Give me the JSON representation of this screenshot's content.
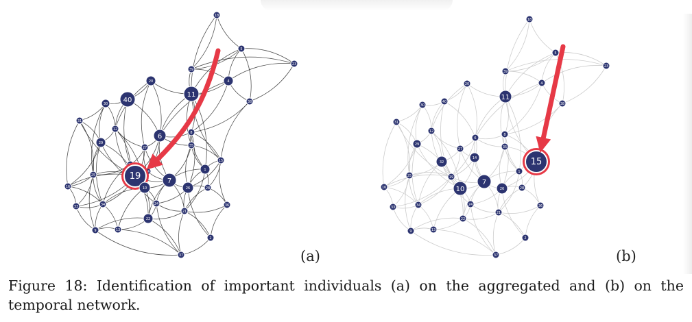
{
  "figure": {
    "panel_a": {
      "label": "(a)",
      "highlighted_node": "19",
      "nodes": [
        "18",
        "5",
        "23",
        "39",
        "4",
        "11",
        "20",
        "40",
        "30",
        "38",
        "31",
        "12",
        "6",
        "8",
        "29",
        "27",
        "35",
        "32",
        "14",
        "15",
        "1",
        "19",
        "7",
        "26",
        "28",
        "25",
        "16",
        "10",
        "34",
        "24",
        "21",
        "33",
        "22",
        "36",
        "9",
        "13",
        "2",
        "37"
      ]
    },
    "panel_b": {
      "label": "(b)",
      "highlighted_node": "15",
      "nodes": [
        "18",
        "5",
        "23",
        "39",
        "4",
        "11",
        "20",
        "40",
        "30",
        "38",
        "31",
        "12",
        "6",
        "8",
        "29",
        "27",
        "35",
        "32",
        "14",
        "15",
        "1",
        "19",
        "7",
        "26",
        "28",
        "25",
        "16",
        "10",
        "34",
        "24",
        "21",
        "33",
        "22",
        "36",
        "9",
        "13",
        "2",
        "37"
      ]
    }
  },
  "caption": "Figure 18: Identification of important individuals (a) on the aggregated and (b) on the temporal network.",
  "colors": {
    "node_fill": "#2c3470",
    "node_stroke": "#ffffff",
    "highlight": "#e63946",
    "edge_a": "#333333",
    "edge_b": "#cccccc"
  }
}
